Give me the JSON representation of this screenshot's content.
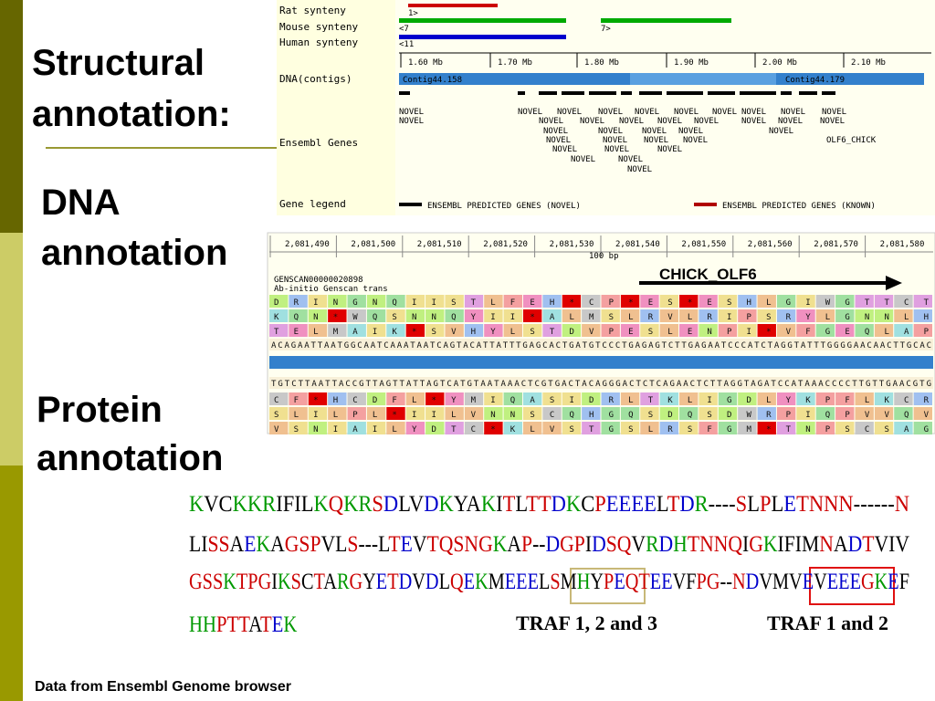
{
  "headings": {
    "structural": [
      "Structural",
      "annotation:"
    ],
    "dna": [
      "DNA",
      "annotation"
    ],
    "protein": [
      "Protein",
      "annotation"
    ]
  },
  "footer": "Data from Ensembl Genome browser",
  "genome_view": {
    "tracks": [
      "Rat synteny",
      "Mouse synteny",
      "Human synteny",
      "DNA(contigs)",
      "Ensembl Genes",
      "Gene legend"
    ],
    "synteny_labels": [
      "1>",
      "<7",
      "7>",
      "<11"
    ],
    "scale": [
      "1.60 Mb",
      "1.70 Mb",
      "1.80 Mb",
      "1.90 Mb",
      "2.00 Mb",
      "2.10 Mb"
    ],
    "contigs": [
      "Contig44.158",
      "Contig44.179"
    ],
    "genes": [
      "NOVEL",
      "NOVEL",
      "NOVEL",
      "NOVEL",
      "NOVEL",
      "NOVEL",
      "NOVEL",
      "NOVEL",
      "NOVEL",
      "NOVEL",
      "NOVEL",
      "NOVEL",
      "NOVEL",
      "NOVEL",
      "NOVEL",
      "NOVEL",
      "NOVEL",
      "NOVEL",
      "NOVEL",
      "NOVEL",
      "NOVEL",
      "NOVEL",
      "NOVEL",
      "NOVEL",
      "NOVEL",
      "NOVEL",
      "NOVEL",
      "NOVEL",
      "OLF6_CHICK",
      "NOVEL",
      "NOVEL",
      "NOVEL",
      "NOVEL",
      "NOVEL",
      "NOVEL"
    ],
    "legend": [
      "ENSEMBL PREDICTED GENES (NOVEL)",
      "ENSEMBL PREDICTED GENES (KNOWN)"
    ]
  },
  "sequence_view": {
    "coordinates": [
      "2,081,490",
      "2,081,500",
      "2,081,510",
      "2,081,520",
      "2,081,530",
      "2,081,540",
      "2,081,550",
      "2,081,560",
      "2,081,570",
      "2,081,580"
    ],
    "scale_label": "100 bp",
    "gene_id": "GENSCAN00000020898",
    "gene_desc": "Ab-initio Genscan trans",
    "annotation": "CHICK_OLF6",
    "forward_frames": [
      "DRINGNQIISTLFEH*CP*ES*ESHLGIWGTTCT",
      "KQN*WQSNNQYII*ALMSLRVLRIPSRYLGNNLH",
      "TELMAIK*SVHYLSTDVPESLENPI*VFGEQLAP"
    ],
    "forward_dna": "ACAGAATTAATGGCAATCAAATAATCAGTACATTATTTGAGCACTGATGTCCCTGAGAGTCTTGAGAATCCCATCTAGGTATTTGGGGAACAACTTGCAC",
    "reverse_dna": "TGTCTTAATTACCGTTAGTTATTAGTCATGTAATAAACTCGTGACTACAGGGACTCTCAGAACTCTTAGGTAGATCCATAAACCCCTTGTTGAACGTG",
    "reverse_frames": [
      "CF*HCDFL*YMIQASIDRLTKLIGDLYKPFLKCR",
      "SLILPL*IILVNNSCQHGQSDQSDWRPIQPVVQV",
      "VSNIAILYDTC*KLVSTGSLRSFGM*TNPSCSAG"
    ]
  },
  "protein": {
    "lines": [
      "KVCKKRIFILKQKRSDLVDKYAKITLTTDKCPEEEELTDR----SLPLETNNN------N",
      "LISSAEKAGSPVLS---LTEVTQSNGKAP--DGPIDSQVRDHTNNQIGKIFIMNADTVIV",
      "GSSKTPGIKSCTARGYETDVDLQEKMEEELSMHYPEQTEEVFPG--NDVMVEVEEEGKEF",
      "HHPTTATEK"
    ],
    "motifs": [
      "TRAF 1, 2 and 3",
      "TRAF 1 and 2"
    ]
  }
}
